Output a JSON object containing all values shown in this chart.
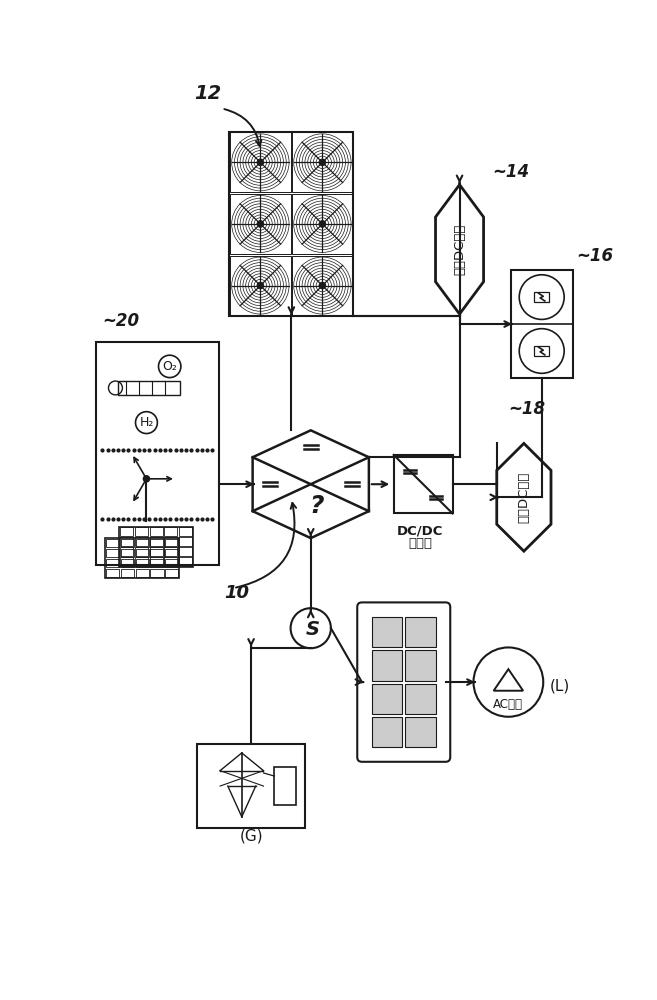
{
  "bg_color": "#ffffff",
  "line_color": "#1a1a1a",
  "label_12": "12",
  "label_14": "~14",
  "label_16": "~16",
  "label_18": "~18",
  "label_20": "~20",
  "label_10": "10",
  "text_high_dc": "高压DC负载",
  "text_low_dc": "低压DC负载",
  "text_dc_line1": "DC/DC",
  "text_dc_line2": "转换器",
  "text_ac_load": "AC负载",
  "text_G": "(G)",
  "text_L": "(L)"
}
